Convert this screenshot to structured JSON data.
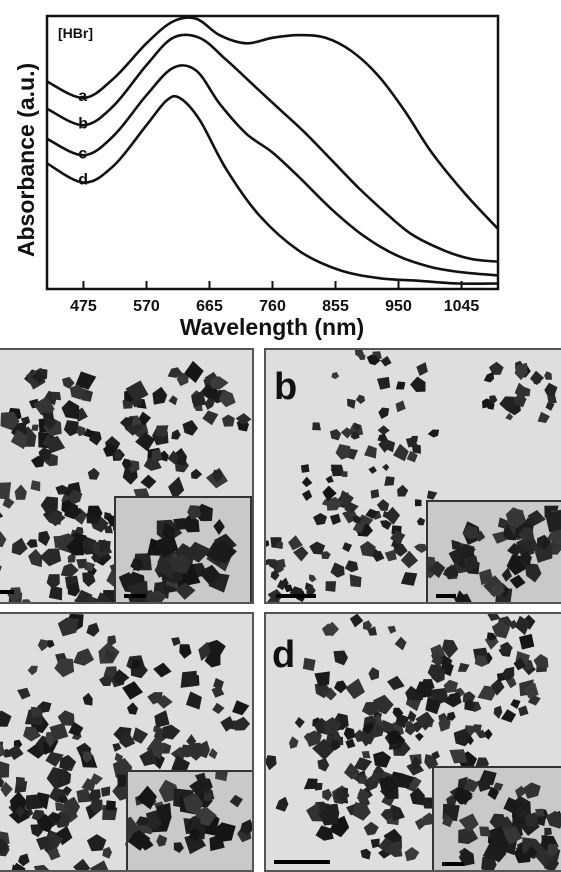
{
  "chart_data": {
    "type": "line",
    "annotation": "[HBr]",
    "xlabel": "Wavelength (nm)",
    "ylabel": "Absorbance (a.u.)",
    "x_ticks": [
      475,
      570,
      665,
      760,
      855,
      950,
      1045
    ],
    "xlim": [
      420,
      1100
    ],
    "ylim": [
      0,
      1
    ],
    "series": [
      {
        "name": "a",
        "x": [
          420,
          475,
          520,
          570,
          610,
          645,
          680,
          720,
          760,
          800,
          840,
          880,
          920,
          960,
          1000,
          1050,
          1100
        ],
        "values": [
          0.76,
          0.7,
          0.77,
          0.9,
          0.98,
          0.99,
          0.93,
          0.9,
          0.92,
          0.93,
          0.92,
          0.87,
          0.78,
          0.65,
          0.5,
          0.35,
          0.22
        ]
      },
      {
        "name": "b",
        "x": [
          420,
          475,
          520,
          570,
          610,
          650,
          690,
          730,
          770,
          810,
          850,
          890,
          930,
          970,
          1020,
          1060,
          1100
        ],
        "values": [
          0.66,
          0.6,
          0.67,
          0.82,
          0.92,
          0.92,
          0.84,
          0.75,
          0.66,
          0.57,
          0.47,
          0.37,
          0.28,
          0.2,
          0.14,
          0.11,
          0.1
        ]
      },
      {
        "name": "c",
        "x": [
          420,
          475,
          520,
          570,
          610,
          645,
          680,
          720,
          760,
          800,
          850,
          900,
          950,
          1000,
          1050,
          1100
        ],
        "values": [
          0.55,
          0.49,
          0.56,
          0.71,
          0.81,
          0.8,
          0.68,
          0.57,
          0.5,
          0.41,
          0.29,
          0.19,
          0.12,
          0.08,
          0.06,
          0.05
        ]
      },
      {
        "name": "d",
        "x": [
          420,
          475,
          520,
          570,
          600,
          620,
          650,
          690,
          740,
          800,
          860,
          920,
          980,
          1040,
          1100
        ],
        "values": [
          0.46,
          0.39,
          0.45,
          0.6,
          0.69,
          0.7,
          0.62,
          0.44,
          0.27,
          0.14,
          0.07,
          0.04,
          0.03,
          0.02,
          0.02
        ]
      }
    ]
  },
  "panels": {
    "b": {
      "letter": "b"
    },
    "d": {
      "letter": "d"
    }
  },
  "colors": {
    "micrograph_background": "#dedede",
    "inset_background": "#c9c9c9",
    "particle": "#1c1c1c",
    "line": "#111111"
  }
}
